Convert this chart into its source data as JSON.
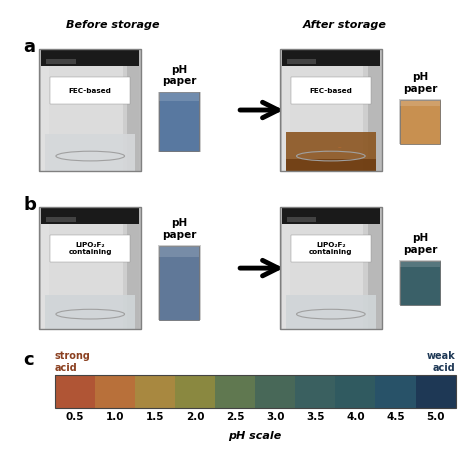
{
  "title_before": "Before storage",
  "title_after": "After storage",
  "label_a": "a",
  "label_b": "b",
  "label_c": "c",
  "fec_label": "FEC-based",
  "lipo_label": "LiPO₂F₂\ncontaining",
  "ph_paper_label": "pH\npaper",
  "strong_acid": "strong\nacid",
  "weak_acid": "weak\nacid",
  "ph_scale_label": "pH scale",
  "ph_ticks": [
    0.5,
    1.0,
    1.5,
    2.0,
    2.5,
    3.0,
    3.5,
    4.0,
    4.5,
    5.0
  ],
  "ph_colors": [
    "#B05535",
    "#B8703A",
    "#A88840",
    "#8A8840",
    "#607850",
    "#486858",
    "#3A6060",
    "#305A60",
    "#285268",
    "#1E3855"
  ],
  "bg_color": "#FFFFFF",
  "jar_body_color": "#C8C8C8",
  "jar_body_light": "#E8E8E8",
  "jar_top_color": "#1A1A1A",
  "jar_top_light": "#555555",
  "fec_before_liquid": "#D5D8DA",
  "fec_after_liquid": "#8B5520",
  "lipo_before_liquid": "#D0D5D8",
  "lipo_after_liquid": "#D0D5D8",
  "ph_before_a_color": "#5878A0",
  "ph_after_a_color": "#C89050",
  "ph_before_b_color": "#607898",
  "ph_after_b_color": "#3A6068",
  "label_fontsize": 13,
  "title_fontsize": 8,
  "ph_label_fontsize": 7.5
}
